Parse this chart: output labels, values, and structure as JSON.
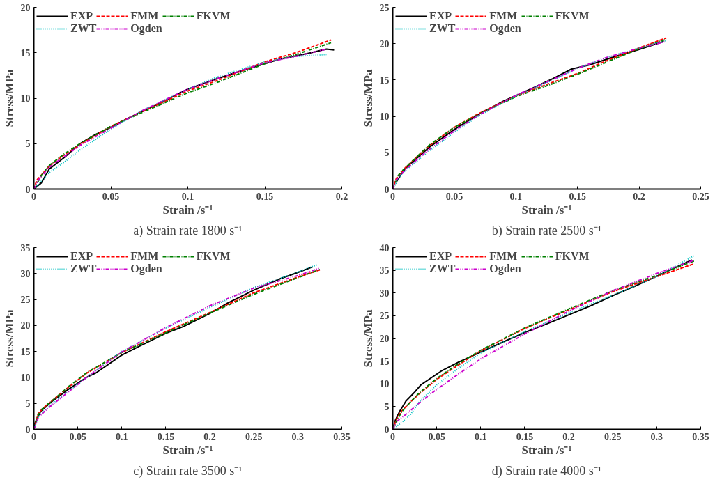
{
  "chart_data": [
    {
      "type": "line",
      "title": "a) Strain rate 1800 s⁻¹",
      "xlabel": "Strain /s⁻¹",
      "ylabel": "Stress/MPa",
      "xlim": [
        0,
        0.2
      ],
      "ylim": [
        0,
        20
      ],
      "xticks": [
        0,
        0.05,
        0.1,
        0.15,
        0.2
      ],
      "yticks": [
        0,
        5,
        10,
        15,
        20
      ],
      "legend": "top left",
      "grid": false,
      "series": [
        {
          "name": "EXP",
          "color": "#000000",
          "line_style": "solid",
          "x": [
            0,
            0.005,
            0.01,
            0.02,
            0.03,
            0.04,
            0.05,
            0.06,
            0.08,
            0.1,
            0.12,
            0.14,
            0.16,
            0.18,
            0.19,
            0.195
          ],
          "values": [
            0,
            0.7,
            2.2,
            3.5,
            5,
            6,
            6.8,
            7.7,
            9.3,
            11,
            12.2,
            13.3,
            14.3,
            15,
            15.4,
            15.3
          ]
        },
        {
          "name": "FMM",
          "color": "#ff0000",
          "line_style": "dashed",
          "x": [
            0,
            0.002,
            0.01,
            0.02,
            0.03,
            0.05,
            0.07,
            0.1,
            0.12,
            0.15,
            0.17,
            0.193
          ],
          "values": [
            0,
            1,
            2.5,
            3.8,
            4.9,
            6.9,
            8.5,
            10.8,
            12,
            14,
            15,
            16.4
          ]
        },
        {
          "name": "FKVM",
          "color": "#008000",
          "line_style": "dashdot",
          "x": [
            0,
            0.005,
            0.01,
            0.02,
            0.03,
            0.05,
            0.07,
            0.1,
            0.12,
            0.15,
            0.17,
            0.193
          ],
          "values": [
            0,
            1.5,
            2.6,
            3.9,
            5,
            6.9,
            8.4,
            10.6,
            11.8,
            13.8,
            14.8,
            16.1
          ]
        },
        {
          "name": "ZWT",
          "color": "#00c0c0",
          "line_style": "dotted",
          "x": [
            0,
            0.01,
            0.02,
            0.03,
            0.05,
            0.07,
            0.1,
            0.12,
            0.15,
            0.17,
            0.19
          ],
          "values": [
            0,
            1.8,
            3,
            4.3,
            6.6,
            8.6,
            11,
            12.4,
            14,
            14.6,
            14.8
          ]
        },
        {
          "name": "Ogden",
          "color": "#cc00cc",
          "line_style": "dashdotdot",
          "x": [
            0,
            0.003,
            0.01,
            0.02,
            0.03,
            0.05,
            0.07,
            0.1,
            0.12,
            0.15,
            0.17,
            0.19
          ],
          "values": [
            0,
            1,
            2.4,
            3.6,
            4.8,
            6.7,
            8.6,
            11,
            12.2,
            13.9,
            14.6,
            15.4
          ]
        }
      ]
    },
    {
      "type": "line",
      "title": "b) Strain rate 2500 s⁻¹",
      "xlabel": "Strain /s⁻¹",
      "ylabel": "Stress/MPa",
      "xlim": [
        0,
        0.25
      ],
      "ylim": [
        0,
        25
      ],
      "xticks": [
        0,
        0.05,
        0.1,
        0.15,
        0.2,
        0.25
      ],
      "yticks": [
        0,
        5,
        10,
        15,
        20,
        25
      ],
      "legend": "top left",
      "grid": false,
      "series": [
        {
          "name": "EXP",
          "color": "#000000",
          "line_style": "solid",
          "x": [
            0.003,
            0.01,
            0.02,
            0.03,
            0.05,
            0.07,
            0.09,
            0.11,
            0.13,
            0.145,
            0.16,
            0.18,
            0.2,
            0.22
          ],
          "values": [
            1,
            2.8,
            4.3,
            5.8,
            8.2,
            10.3,
            12.1,
            13.6,
            15.2,
            16.5,
            17.1,
            18.2,
            19.2,
            20.3
          ]
        },
        {
          "name": "FMM",
          "color": "#ff0000",
          "line_style": "dashed",
          "x": [
            0,
            0.003,
            0.01,
            0.02,
            0.03,
            0.05,
            0.07,
            0.1,
            0.13,
            0.15,
            0.17,
            0.2,
            0.222
          ],
          "values": [
            0,
            1.5,
            2.9,
            4.5,
            6,
            8.5,
            10.4,
            12.8,
            14.7,
            15.9,
            17.4,
            19.4,
            20.8
          ]
        },
        {
          "name": "FKVM",
          "color": "#008000",
          "line_style": "dashdot",
          "x": [
            0,
            0.005,
            0.01,
            0.02,
            0.03,
            0.05,
            0.07,
            0.1,
            0.13,
            0.15,
            0.17,
            0.2,
            0.222
          ],
          "values": [
            0,
            2,
            2.9,
            4.5,
            6.1,
            8.5,
            10.3,
            12.7,
            14.5,
            15.8,
            17.2,
            19.3,
            20.6
          ]
        },
        {
          "name": "ZWT",
          "color": "#00c0c0",
          "line_style": "dotted",
          "x": [
            0,
            0.005,
            0.01,
            0.02,
            0.03,
            0.05,
            0.07,
            0.1,
            0.13,
            0.15,
            0.17,
            0.2,
            0.222
          ],
          "values": [
            0,
            1.5,
            2.5,
            3.9,
            5.3,
            7.8,
            10.1,
            12.8,
            15,
            16.6,
            17.9,
            19.4,
            20.4
          ]
        },
        {
          "name": "Ogden",
          "color": "#cc00cc",
          "line_style": "dashdotdot",
          "x": [
            0,
            0.003,
            0.01,
            0.02,
            0.03,
            0.05,
            0.07,
            0.1,
            0.13,
            0.15,
            0.17,
            0.2,
            0.222
          ],
          "values": [
            0,
            1.3,
            2.6,
            4.1,
            5.5,
            8,
            10.2,
            12.9,
            15.1,
            16.6,
            17.9,
            19.4,
            20.3
          ]
        }
      ]
    },
    {
      "type": "line",
      "title": "c) Strain rate 3500 s⁻¹",
      "xlabel": "Strain /s⁻¹",
      "ylabel": "Stress/MPa",
      "xlim": [
        0,
        0.35
      ],
      "ylim": [
        0,
        35
      ],
      "xticks": [
        0,
        0.05,
        0.1,
        0.15,
        0.2,
        0.25,
        0.3,
        0.35
      ],
      "yticks": [
        0,
        5,
        10,
        15,
        20,
        25,
        30,
        35
      ],
      "legend": "top left",
      "grid": false,
      "series": [
        {
          "name": "EXP",
          "color": "#000000",
          "line_style": "solid",
          "x": [
            0,
            0.002,
            0.008,
            0.02,
            0.04,
            0.06,
            0.07,
            0.1,
            0.12,
            0.15,
            0.17,
            0.2,
            0.22,
            0.25,
            0.28,
            0.3,
            0.317
          ],
          "values": [
            0.5,
            1.5,
            3.5,
            5.3,
            7.8,
            10,
            10.8,
            14.3,
            16,
            18.5,
            19.8,
            22.3,
            24.3,
            26.8,
            29,
            30.2,
            31.3
          ]
        },
        {
          "name": "FMM",
          "color": "#ff0000",
          "line_style": "dashed",
          "x": [
            0,
            0.005,
            0.01,
            0.02,
            0.04,
            0.06,
            0.1,
            0.15,
            0.2,
            0.25,
            0.3,
            0.325
          ],
          "values": [
            0,
            3,
            4,
            5.4,
            8.2,
            10.8,
            14.8,
            18.8,
            22.5,
            26.3,
            29.3,
            30.7
          ]
        },
        {
          "name": "FKVM",
          "color": "#008000",
          "line_style": "dashdot",
          "x": [
            0,
            0.005,
            0.01,
            0.02,
            0.04,
            0.06,
            0.1,
            0.15,
            0.2,
            0.25,
            0.3,
            0.325
          ],
          "values": [
            0,
            2.8,
            4,
            5.4,
            8.3,
            10.9,
            14.8,
            18.6,
            22.4,
            26,
            29.2,
            30.8
          ]
        },
        {
          "name": "ZWT",
          "color": "#00c0c0",
          "line_style": "dotted",
          "x": [
            0,
            0.005,
            0.01,
            0.02,
            0.04,
            0.06,
            0.1,
            0.15,
            0.2,
            0.25,
            0.3,
            0.322
          ],
          "values": [
            0,
            2.3,
            3.3,
            4.8,
            7.4,
            10,
            15,
            19.5,
            23.5,
            27.3,
            30.3,
            31.7
          ]
        },
        {
          "name": "Ogden",
          "color": "#cc00cc",
          "line_style": "dashdotdot",
          "x": [
            0,
            0.005,
            0.01,
            0.02,
            0.04,
            0.06,
            0.1,
            0.15,
            0.2,
            0.25,
            0.3,
            0.324
          ],
          "values": [
            0,
            2.2,
            3.1,
            4.6,
            7.3,
            10,
            14.9,
            19.6,
            23.8,
            27.2,
            29.6,
            31
          ]
        }
      ]
    },
    {
      "type": "line",
      "title": "d) Strain rate 4000 s⁻¹",
      "xlabel": "Strain /s⁻¹",
      "ylabel": "Stress/MPa",
      "xlim": [
        0,
        0.35
      ],
      "ylim": [
        0,
        40
      ],
      "xticks": [
        0,
        0.05,
        0.1,
        0.15,
        0.2,
        0.25,
        0.3,
        0.35
      ],
      "yticks": [
        0,
        5,
        10,
        15,
        20,
        25,
        30,
        35,
        40
      ],
      "legend": "top left",
      "grid": false,
      "series": [
        {
          "name": "EXP",
          "color": "#000000",
          "line_style": "solid",
          "x": [
            0,
            0.003,
            0.008,
            0.015,
            0.025,
            0.032,
            0.045,
            0.055,
            0.075,
            0.1,
            0.125,
            0.15,
            0.175,
            0.2,
            0.225,
            0.25,
            0.275,
            0.3,
            0.34
          ],
          "values": [
            0,
            2,
            4,
            6.2,
            8.2,
            9.8,
            11.5,
            12.8,
            14.8,
            17,
            19.2,
            21.3,
            23.2,
            25.2,
            27.2,
            29.4,
            31.5,
            33.7,
            37.3
          ]
        },
        {
          "name": "FMM",
          "color": "#ff0000",
          "line_style": "dashed",
          "x": [
            0,
            0.005,
            0.01,
            0.02,
            0.03,
            0.05,
            0.075,
            0.1,
            0.15,
            0.2,
            0.25,
            0.3,
            0.342
          ],
          "values": [
            0,
            2.5,
            4,
            6,
            7.8,
            11,
            14.2,
            17.3,
            22.2,
            26.3,
            30.3,
            33.6,
            36.4
          ]
        },
        {
          "name": "FKVM",
          "color": "#008000",
          "line_style": "dashdot",
          "x": [
            0,
            0.005,
            0.01,
            0.02,
            0.03,
            0.05,
            0.075,
            0.1,
            0.15,
            0.2,
            0.25,
            0.3,
            0.343
          ],
          "values": [
            0,
            2,
            3.8,
            6,
            8,
            11.2,
            14.5,
            17.4,
            22.3,
            26.5,
            30.5,
            33.9,
            37.1
          ]
        },
        {
          "name": "ZWT",
          "color": "#00c0c0",
          "line_style": "dotted",
          "x": [
            0,
            0.01,
            0.02,
            0.03,
            0.05,
            0.075,
            0.1,
            0.15,
            0.2,
            0.25,
            0.3,
            0.342
          ],
          "values": [
            0,
            1.5,
            3.2,
            6,
            9.8,
            13.5,
            16.8,
            21.5,
            25.6,
            29.5,
            33.6,
            38.2
          ]
        },
        {
          "name": "Ogden",
          "color": "#cc00cc",
          "line_style": "dashdotdot",
          "x": [
            0,
            0.005,
            0.015,
            0.03,
            0.05,
            0.075,
            0.1,
            0.15,
            0.2,
            0.25,
            0.3,
            0.342
          ],
          "values": [
            0,
            1.8,
            3.3,
            5.8,
            8.8,
            12.2,
            15.5,
            21,
            26,
            30.5,
            34.3,
            37.2
          ]
        }
      ]
    }
  ]
}
